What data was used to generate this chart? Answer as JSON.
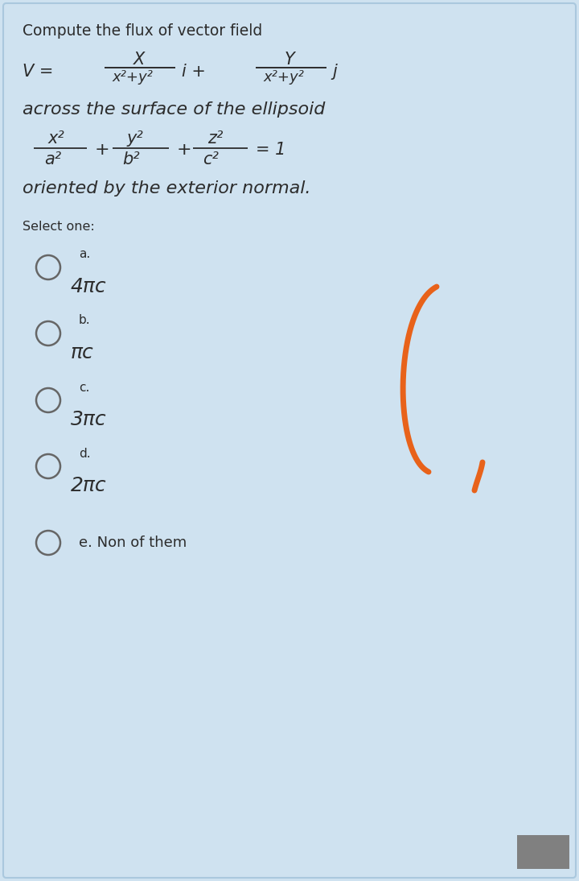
{
  "bg_color": "#cfe2f0",
  "text_color": "#2c2c2c",
  "title_text": "Compute the flux of vector field",
  "select_one_text": "Select one:",
  "option_labels": [
    "a.",
    "b.",
    "c.",
    "d."
  ],
  "option_answers": [
    "4πc",
    "πc",
    "3πc",
    "2πc"
  ],
  "option_e_text": "e. Non of them",
  "circle_color": "#cfe2f0",
  "circle_edge_color": "#666666",
  "orange_color": "#e8621a",
  "gray_box_color": "#808080"
}
